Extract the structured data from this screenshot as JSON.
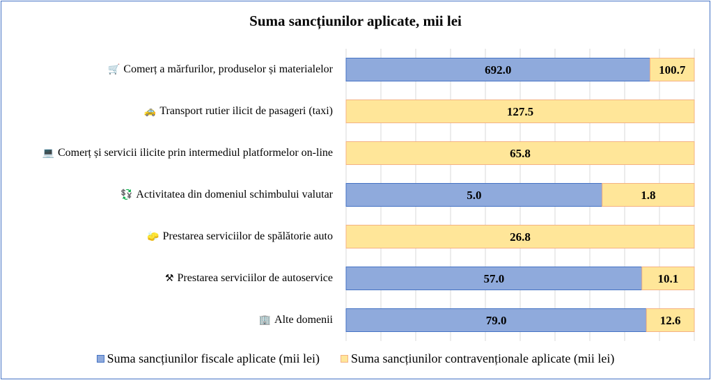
{
  "chart_data": {
    "type": "bar",
    "orientation": "horizontal",
    "stacked": true,
    "normalized": true,
    "title": "Suma sancțiunilor aplicate, mii lei",
    "categories": [
      {
        "label": "Comerț a mărfurilor,  produselor și materialelor",
        "icon": "shopping-cart-icon",
        "glyph": "🛒"
      },
      {
        "label": "Transport rutier ilicit  de pasageri (taxi)",
        "icon": "taxi-icon",
        "glyph": "🚕"
      },
      {
        "label": "Comerț și servicii ilicite  prin intermediul  platformelor on-line",
        "icon": "laptop-icon",
        "glyph": "💻"
      },
      {
        "label": "Activitatea  din domeniul  schimbului  valutar",
        "icon": "currency-exchange-icon",
        "glyph": "💱"
      },
      {
        "label": "Prestarea serviciilor  de spălătorie auto",
        "icon": "sponge-icon",
        "glyph": "🧽"
      },
      {
        "label": "Prestarea serviciilor  de autoservice",
        "icon": "tools-icon",
        "glyph": "⚒"
      },
      {
        "label": "Alte domenii",
        "icon": "building-icon",
        "glyph": "🏢"
      }
    ],
    "series": [
      {
        "name": "Suma sancțiunilor fiscale aplicate (mii lei)",
        "color": "#8faadc",
        "border": "#4472c4",
        "values": [
          692.0,
          0,
          0,
          5.0,
          0,
          57.0,
          79.0
        ],
        "labels": [
          "692.0",
          "",
          "",
          "5.0",
          "",
          "57.0",
          "79.0"
        ]
      },
      {
        "name": "Suma sancțiunilor contravenționale aplicate (mii lei)",
        "color": "#ffe699",
        "border": "#f4b183",
        "values": [
          100.7,
          127.5,
          65.8,
          1.8,
          26.8,
          10.1,
          12.6
        ],
        "labels": [
          "100.7",
          "127.5",
          "65.8",
          "1.8",
          "26.8",
          "10.1",
          "12.6"
        ]
      }
    ],
    "xlim": [
      0,
      100
    ],
    "grid": true,
    "legend_position": "bottom"
  }
}
